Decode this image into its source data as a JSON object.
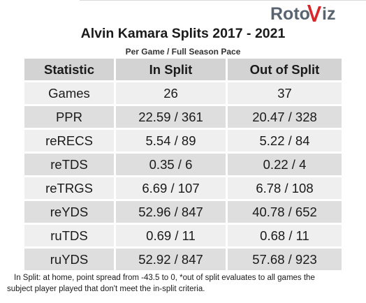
{
  "logo": {
    "text_left": "Roto",
    "text_right": "iz",
    "colors": {
      "gray": "#5a6470",
      "red": "#d9262b"
    }
  },
  "title": "Alvin Kamara Splits 2017 - 2021",
  "subtitle": "Per Game / Full Season Pace",
  "table": {
    "headers": [
      "Statistic",
      "In Split",
      "Out of Split"
    ],
    "rows": [
      {
        "stat": "Games",
        "in_split": "26",
        "out_split": "37"
      },
      {
        "stat": "PPR",
        "in_split": "22.59 / 361",
        "out_split": "20.47 / 328"
      },
      {
        "stat": "reRECS",
        "in_split": "5.54 / 89",
        "out_split": "5.22 / 84"
      },
      {
        "stat": "reTDS",
        "in_split": "0.35 / 6",
        "out_split": "0.22 / 4"
      },
      {
        "stat": "reTRGS",
        "in_split": "6.69 / 107",
        "out_split": "6.78 / 108"
      },
      {
        "stat": "reYDS",
        "in_split": "52.96 / 847",
        "out_split": "40.78 / 652"
      },
      {
        "stat": "ruTDS",
        "in_split": "0.69 / 11",
        "out_split": "0.68 / 11"
      },
      {
        "stat": "ruYDS",
        "in_split": "52.92 / 847",
        "out_split": "57.68 / 923"
      }
    ]
  },
  "footnote": {
    "line1": "In Split: at home, point spread from -43.5 to 0,  *out of split evaluates to all games the",
    "line2": "subject player played that don't meet the in-split criteria."
  }
}
